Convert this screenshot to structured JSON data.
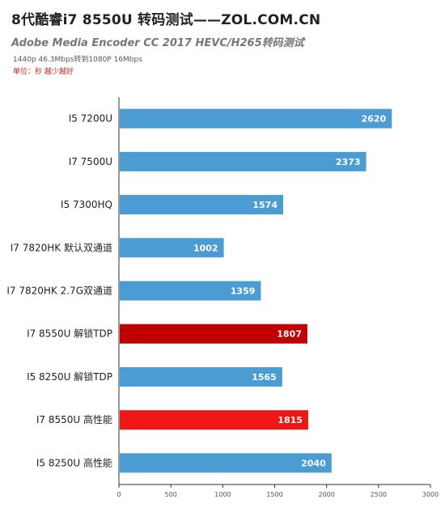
{
  "header": {
    "title": "8代酷睿i7 8550U 转码测试——ZOL.COM.CN",
    "subtitle": "Adobe Media Encoder CC 2017 HEVC/H265转码测试",
    "note": "1440p 46.3Mbps转到1080P 16Mbps",
    "unit": "单位：秒 越少越好"
  },
  "colors": {
    "default": "#4b9cd3",
    "highlight_dark": "#c00000",
    "highlight_bright": "#f01616",
    "axis": "#333333",
    "grid": "#cccccc"
  },
  "chart_data": {
    "type": "bar",
    "orientation": "horizontal",
    "title": "8代酷睿i7 8550U 转码测试——ZOL.COM.CN",
    "subtitle": "Adobe Media Encoder CC 2017 HEVC/H265转码测试",
    "categories": [
      "I5 7200U",
      "I7 7500U",
      "I5 7300HQ",
      "I7 7820HK 默认双通道",
      "I7 7820HK 2.7G双通道",
      "I7 8550U 解锁TDP",
      "I5 8250U 解锁TDP",
      "I7 8550U 高性能",
      "I5 8250U 高性能"
    ],
    "values": [
      2620,
      2373,
      1574,
      1002,
      1359,
      1807,
      1565,
      1815,
      2040
    ],
    "bar_colors": [
      "default",
      "default",
      "default",
      "default",
      "default",
      "highlight_dark",
      "default",
      "highlight_bright",
      "default"
    ],
    "xlim": [
      0,
      3000
    ],
    "xticks": [
      0,
      500,
      1000,
      1500,
      2000,
      2500,
      3000
    ],
    "grid": false,
    "legend": "none",
    "data_labels": true
  }
}
